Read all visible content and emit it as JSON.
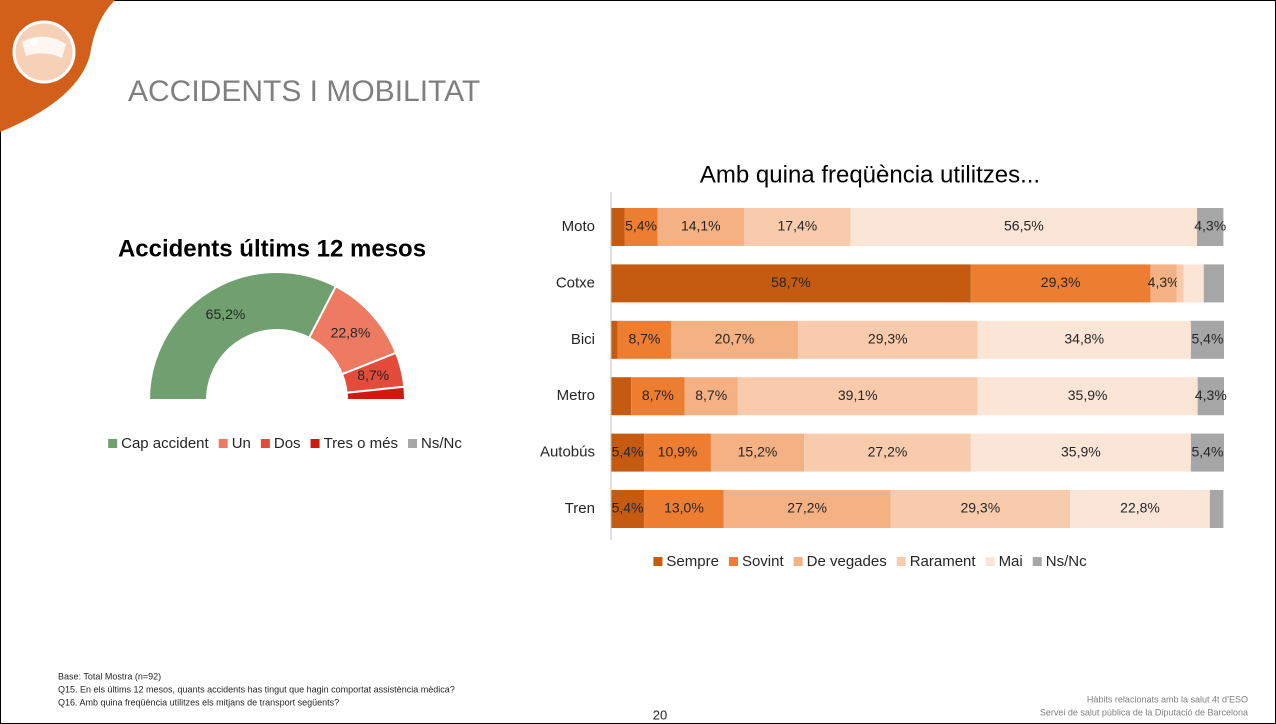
{
  "header": {
    "title": "ACCIDENTS I MOBILITAT"
  },
  "chart_data": [
    {
      "type": "pie",
      "donut": true,
      "half": true,
      "title": "Accidents últims 12 mesos",
      "categories": [
        "Cap accident",
        "Un",
        "Dos",
        "Tres o més",
        "Ns/Nc"
      ],
      "values": [
        65.2,
        22.8,
        8.7,
        3.3,
        0
      ],
      "value_labels": [
        "65,2%",
        "22,8%",
        "8,7%",
        null,
        null
      ],
      "colors": [
        "#70a070",
        "#ef7a62",
        "#e34b3b",
        "#d0190f",
        "#a6a6a6"
      ]
    },
    {
      "type": "bar",
      "orientation": "horizontal",
      "stacked": true,
      "title": "Amb quina freqüència utilitzes...",
      "categories": [
        "Moto",
        "Cotxe",
        "Bici",
        "Metro",
        "Autobús",
        "Tren"
      ],
      "xlim": [
        0,
        100
      ],
      "series": [
        {
          "name": "Sempre",
          "color": "#c55a11",
          "values": [
            2.2,
            58.7,
            1.1,
            3.3,
            5.4,
            5.4
          ],
          "value_labels": [
            null,
            "58,7%",
            null,
            null,
            "5,4%",
            "5,4%"
          ]
        },
        {
          "name": "Sovint",
          "color": "#ed7d31",
          "values": [
            5.4,
            29.3,
            8.7,
            8.7,
            10.9,
            13.0
          ],
          "value_labels": [
            "5,4%",
            "29,3%",
            "8,7%",
            "8,7%",
            "10,9%",
            "13,0%"
          ]
        },
        {
          "name": "De vegades",
          "color": "#f4b183",
          "values": [
            14.1,
            4.3,
            20.7,
            8.7,
            15.2,
            27.2
          ],
          "value_labels": [
            "14,1%",
            "4,3%",
            "20,7%",
            "8,7%",
            "15,2%",
            "27,2%"
          ]
        },
        {
          "name": "Rarament",
          "color": "#f8cbad",
          "values": [
            17.4,
            1.1,
            29.3,
            39.1,
            27.2,
            29.3
          ],
          "value_labels": [
            "17,4%",
            null,
            "29,3%",
            "39,1%",
            "27,2%",
            "29,3%"
          ]
        },
        {
          "name": "Mai",
          "color": "#fbe5d6",
          "values": [
            56.5,
            3.3,
            34.8,
            35.9,
            35.9,
            22.8
          ],
          "value_labels": [
            "56,5%",
            null,
            "34,8%",
            "35,9%",
            "35,9%",
            "22,8%"
          ]
        },
        {
          "name": "Ns/Nc",
          "color": "#a6a6a6",
          "values": [
            4.3,
            3.3,
            5.4,
            4.3,
            5.4,
            2.2
          ],
          "value_labels": [
            "4,3%",
            null,
            "5,4%",
            "4,3%",
            "5,4%",
            null
          ]
        }
      ]
    }
  ],
  "footer": {
    "notes": [
      "Base: Total Mostra (n=92)",
      "Q15. En els últims 12 mesos, quants accidents has tingut que hagin comportat assistència mèdica?",
      "Q16. Amb quina freqüència utilitzes els mitjans de transport següents?"
    ],
    "page": "20",
    "source": [
      "Hàbits  relacionats  amb la salut  4t d’ESO",
      "Servei de salut pública de la Diputació de Barcelona"
    ]
  }
}
